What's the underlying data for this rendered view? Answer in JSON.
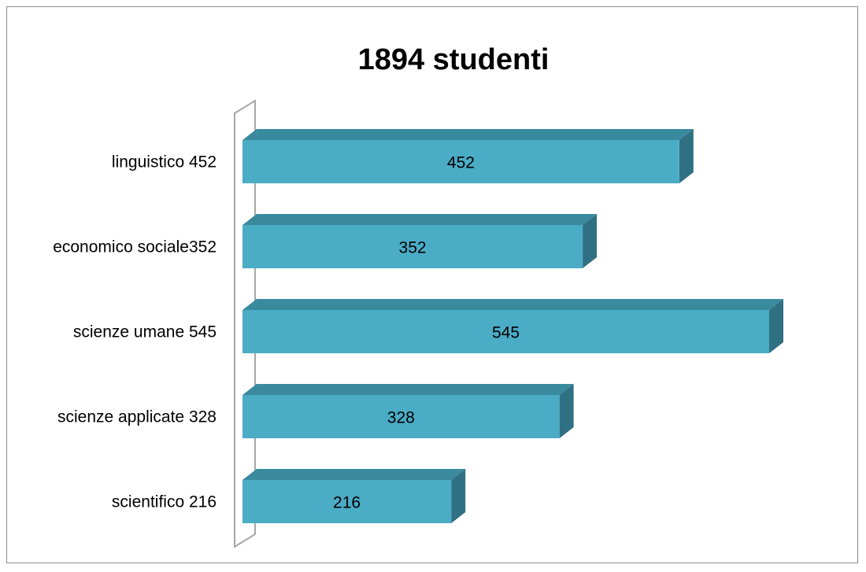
{
  "chart_data": {
    "type": "bar",
    "orientation": "horizontal",
    "style": "3d",
    "title": "1894 studenti",
    "categories": [
      "linguistico 452",
      "economico sociale352",
      "scienze umane 545",
      "scienze applicate 328",
      "scientifico 216"
    ],
    "values": [
      452,
      352,
      545,
      328,
      216
    ],
    "data_labels": [
      "452",
      "352",
      "545",
      "328",
      "216"
    ],
    "xlim": [
      0,
      545
    ],
    "xlabel": "",
    "ylabel": "",
    "grid": false,
    "legend": "none",
    "colors": {
      "bar_front": "#4bacc6",
      "bar_top": "#3a8a9e",
      "bar_side": "#2f7082",
      "axis_wall": "#a6a6a6",
      "frame": "#8c8c8c"
    }
  }
}
